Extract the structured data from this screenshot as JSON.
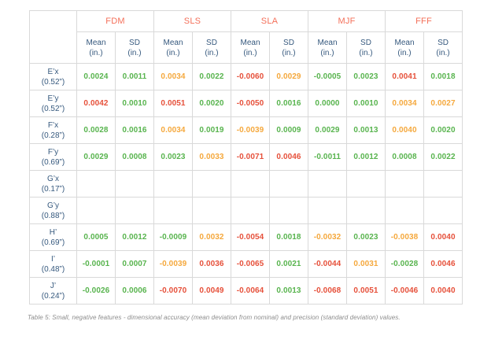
{
  "table": {
    "caption": "Table 5: Small, negative features - dimensional accuracy (mean deviation from nominal) and precision (standard deviation) values.",
    "processes": [
      "FDM",
      "SLS",
      "SLA",
      "MJF",
      "FFF"
    ],
    "subheader": {
      "mean": "Mean",
      "sd": "SD",
      "unit": "(in.)"
    },
    "rows": [
      {
        "feature": "E’x",
        "size": "(0.52”)",
        "cells": [
          {
            "value": "0.0024",
            "color": "green"
          },
          {
            "value": "0.0011",
            "color": "green"
          },
          {
            "value": "0.0034",
            "color": "orange"
          },
          {
            "value": "0.0022",
            "color": "green"
          },
          {
            "value": "-0.0060",
            "color": "red"
          },
          {
            "value": "0.0029",
            "color": "orange"
          },
          {
            "value": "-0.0005",
            "color": "green"
          },
          {
            "value": "0.0023",
            "color": "green"
          },
          {
            "value": "0.0041",
            "color": "red"
          },
          {
            "value": "0.0018",
            "color": "green"
          }
        ]
      },
      {
        "feature": "E’y",
        "size": "(0.52”)",
        "cells": [
          {
            "value": "0.0042",
            "color": "red"
          },
          {
            "value": "0.0010",
            "color": "green"
          },
          {
            "value": "0.0051",
            "color": "red"
          },
          {
            "value": "0.0020",
            "color": "green"
          },
          {
            "value": "-0.0050",
            "color": "red"
          },
          {
            "value": "0.0016",
            "color": "green"
          },
          {
            "value": "0.0000",
            "color": "green"
          },
          {
            "value": "0.0010",
            "color": "green"
          },
          {
            "value": "0.0034",
            "color": "orange"
          },
          {
            "value": "0.0027",
            "color": "orange"
          }
        ]
      },
      {
        "feature": "F’x",
        "size": "(0.28”)",
        "cells": [
          {
            "value": "0.0028",
            "color": "green"
          },
          {
            "value": "0.0016",
            "color": "green"
          },
          {
            "value": "0.0034",
            "color": "orange"
          },
          {
            "value": "0.0019",
            "color": "green"
          },
          {
            "value": "-0.0039",
            "color": "orange"
          },
          {
            "value": "0.0009",
            "color": "green"
          },
          {
            "value": "0.0029",
            "color": "green"
          },
          {
            "value": "0.0013",
            "color": "green"
          },
          {
            "value": "0.0040",
            "color": "orange"
          },
          {
            "value": "0.0020",
            "color": "green"
          }
        ]
      },
      {
        "feature": "F’y",
        "size": "(0.69”)",
        "cells": [
          {
            "value": "0.0029",
            "color": "green"
          },
          {
            "value": "0.0008",
            "color": "green"
          },
          {
            "value": "0.0023",
            "color": "green"
          },
          {
            "value": "0.0033",
            "color": "orange"
          },
          {
            "value": "-0.0071",
            "color": "red"
          },
          {
            "value": "0.0046",
            "color": "red"
          },
          {
            "value": "-0.0011",
            "color": "green"
          },
          {
            "value": "0.0012",
            "color": "green"
          },
          {
            "value": "0.0008",
            "color": "green"
          },
          {
            "value": "0.0022",
            "color": "green"
          }
        ]
      },
      {
        "feature": "G’x",
        "size": "(0.17”)",
        "cells": [
          {
            "value": "",
            "color": ""
          },
          {
            "value": "",
            "color": ""
          },
          {
            "value": "",
            "color": ""
          },
          {
            "value": "",
            "color": ""
          },
          {
            "value": "",
            "color": ""
          },
          {
            "value": "",
            "color": ""
          },
          {
            "value": "",
            "color": ""
          },
          {
            "value": "",
            "color": ""
          },
          {
            "value": "",
            "color": ""
          },
          {
            "value": "",
            "color": ""
          }
        ]
      },
      {
        "feature": "G’y",
        "size": "(0.88”)",
        "cells": [
          {
            "value": "",
            "color": ""
          },
          {
            "value": "",
            "color": ""
          },
          {
            "value": "",
            "color": ""
          },
          {
            "value": "",
            "color": ""
          },
          {
            "value": "",
            "color": ""
          },
          {
            "value": "",
            "color": ""
          },
          {
            "value": "",
            "color": ""
          },
          {
            "value": "",
            "color": ""
          },
          {
            "value": "",
            "color": ""
          },
          {
            "value": "",
            "color": ""
          }
        ]
      },
      {
        "feature": "H’",
        "size": "(0.69”)",
        "cells": [
          {
            "value": "0.0005",
            "color": "green"
          },
          {
            "value": "0.0012",
            "color": "green"
          },
          {
            "value": "-0.0009",
            "color": "green"
          },
          {
            "value": "0.0032",
            "color": "orange"
          },
          {
            "value": "-0.0054",
            "color": "red"
          },
          {
            "value": "0.0018",
            "color": "green"
          },
          {
            "value": "-0.0032",
            "color": "orange"
          },
          {
            "value": "0.0023",
            "color": "green"
          },
          {
            "value": "-0.0038",
            "color": "orange"
          },
          {
            "value": "0.0040",
            "color": "red"
          }
        ]
      },
      {
        "feature": "I’",
        "size": "(0.48”)",
        "cells": [
          {
            "value": "-0.0001",
            "color": "green"
          },
          {
            "value": "0.0007",
            "color": "green"
          },
          {
            "value": "-0.0039",
            "color": "orange"
          },
          {
            "value": "0.0036",
            "color": "red"
          },
          {
            "value": "-0.0065",
            "color": "red"
          },
          {
            "value": "0.0021",
            "color": "green"
          },
          {
            "value": "-0.0044",
            "color": "red"
          },
          {
            "value": "0.0031",
            "color": "orange"
          },
          {
            "value": "-0.0028",
            "color": "green"
          },
          {
            "value": "0.0046",
            "color": "red"
          }
        ]
      },
      {
        "feature": "J’",
        "size": "(0.24”)",
        "cells": [
          {
            "value": "-0.0026",
            "color": "green"
          },
          {
            "value": "0.0006",
            "color": "green"
          },
          {
            "value": "-0.0070",
            "color": "red"
          },
          {
            "value": "0.0049",
            "color": "red"
          },
          {
            "value": "-0.0064",
            "color": "red"
          },
          {
            "value": "0.0013",
            "color": "green"
          },
          {
            "value": "-0.0068",
            "color": "red"
          },
          {
            "value": "0.0051",
            "color": "red"
          },
          {
            "value": "-0.0046",
            "color": "red"
          },
          {
            "value": "0.0040",
            "color": "red"
          }
        ]
      }
    ],
    "colors": {
      "good_green": "#58b44e",
      "warn_orange": "#f5a83c",
      "bad_red": "#e6503a",
      "process_header": "#f4705a",
      "label_navy": "#36597e",
      "grid": "#d9d9d9",
      "caption_gray": "#8c8c8c"
    }
  }
}
